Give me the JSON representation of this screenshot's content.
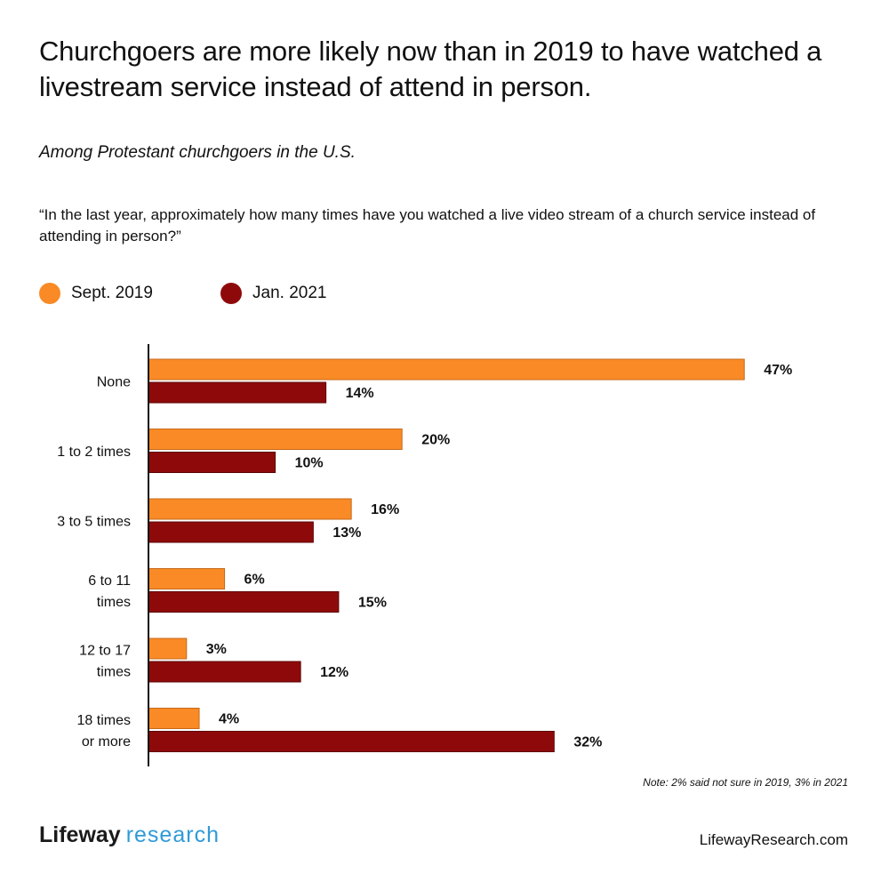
{
  "title": "Churchgoers are more likely now than in 2019 to have watched a livestream service instead of attend in person.",
  "subtitle": "Among Protestant churchgoers in the U.S.",
  "question": "“In the last year, approximately how many times have you watched a live video stream of a church service instead of attending in person?”",
  "note": "Note: 2% said not sure in 2019, 3% in 2021",
  "logo": {
    "part1": "Lifeway",
    "part2": "research"
  },
  "website": "LifewayResearch.com",
  "colors": {
    "sept2019": "#f98a25",
    "jan2021": "#8e0a0a",
    "axis": "#111111",
    "logo_accent": "#2f9ad8"
  },
  "chart_data": {
    "type": "bar",
    "orientation": "horizontal",
    "categories": [
      [
        "None"
      ],
      [
        "1 to 2 times"
      ],
      [
        "3 to 5 times"
      ],
      [
        "6 to 11",
        "times"
      ],
      [
        "12 to 17",
        "times"
      ],
      [
        "18 times",
        "or more"
      ]
    ],
    "series": [
      {
        "name": "Sept. 2019",
        "values": [
          47,
          20,
          16,
          6,
          3,
          4
        ],
        "labels": [
          "47%",
          "20%",
          "16%",
          "6%",
          "3%",
          "4%"
        ]
      },
      {
        "name": "Jan. 2021",
        "values": [
          14,
          10,
          13,
          15,
          12,
          32
        ],
        "labels": [
          "14%",
          "10%",
          "13%",
          "15%",
          "12%",
          "32%"
        ]
      }
    ],
    "value_unit": "%",
    "xlim": [
      0,
      47
    ],
    "grid": false,
    "legend_position": "top-left"
  }
}
